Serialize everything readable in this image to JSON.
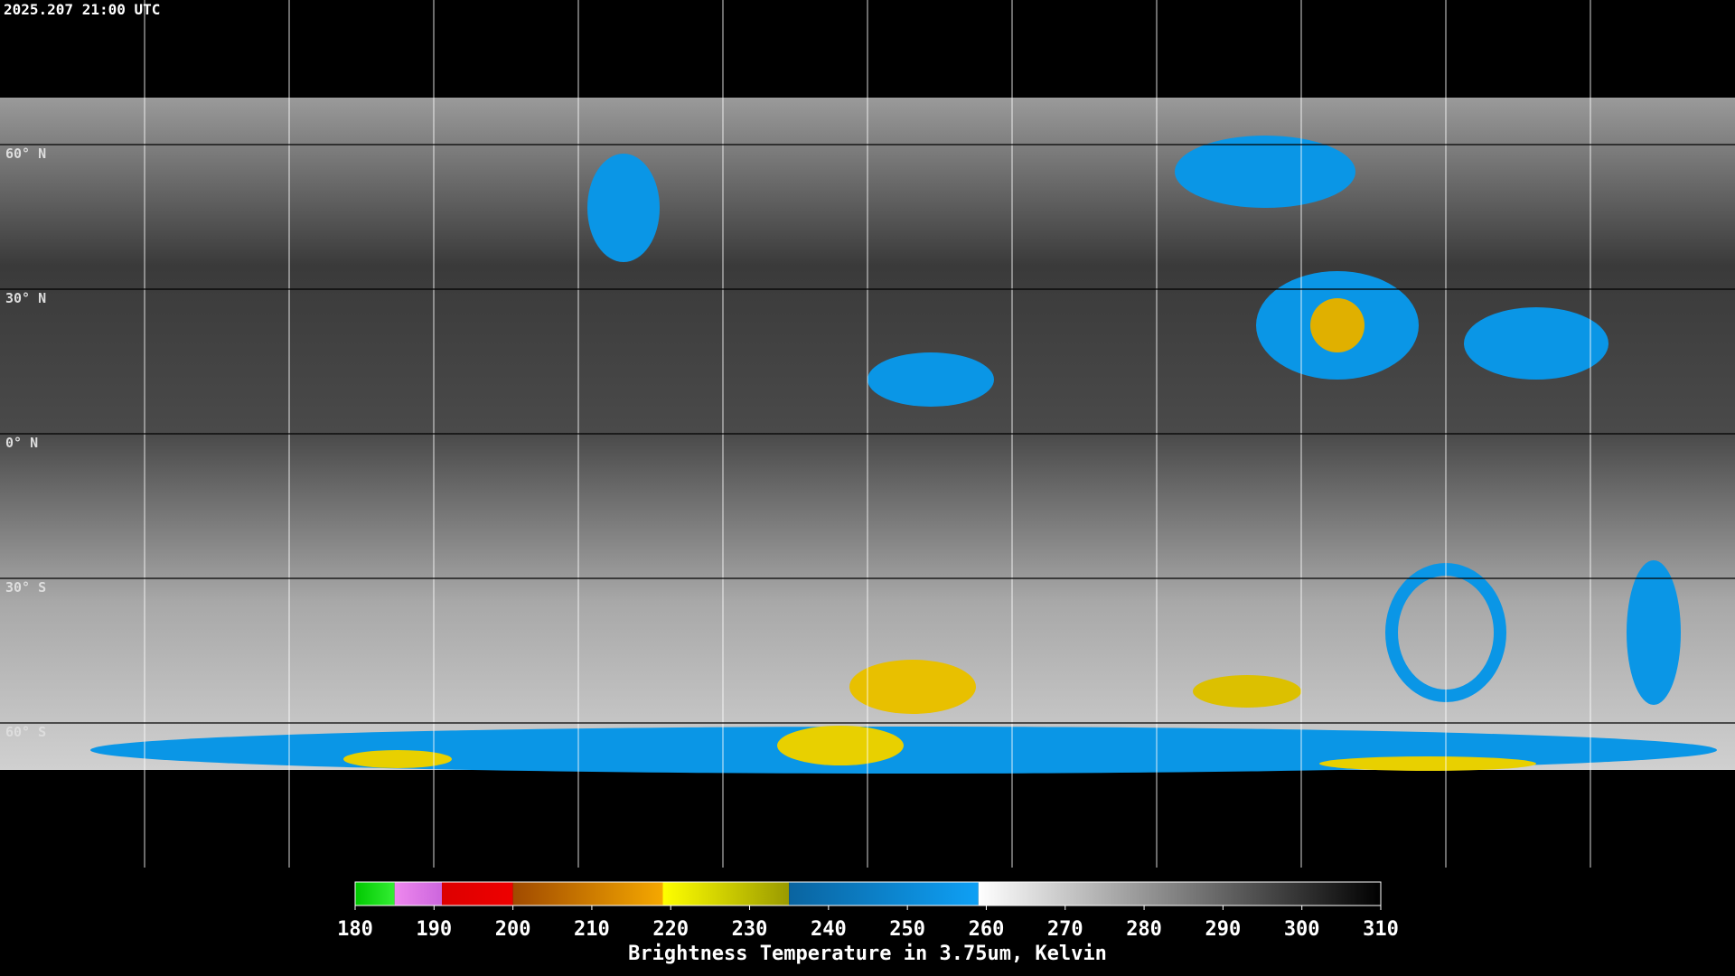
{
  "header": {
    "timestamp": "2025.207 21:00 UTC"
  },
  "map": {
    "xlim": [
      -180,
      180
    ],
    "ylim": [
      -90,
      90
    ],
    "longitudes": [
      -150,
      -120,
      -90,
      -60,
      -30,
      0,
      30,
      60,
      90,
      120,
      150
    ],
    "latitudes": [
      60,
      30,
      0,
      -30,
      -60
    ],
    "lat_labels": [
      "60° N",
      "30° N",
      "0° N",
      "30° S",
      "60° S"
    ]
  },
  "colorbar": {
    "lim": [
      180,
      310
    ],
    "ticks": [
      180,
      190,
      200,
      210,
      220,
      230,
      240,
      250,
      260,
      270,
      280,
      290,
      300,
      310
    ],
    "segments": [
      {
        "from": 180,
        "to": 185,
        "colors": [
          "#00c800",
          "#33ee33"
        ]
      },
      {
        "from": 185,
        "to": 191,
        "colors": [
          "#ee88ee",
          "#cc66dd"
        ]
      },
      {
        "from": 191,
        "to": 200,
        "colors": [
          "#dd0000",
          "#ee0000"
        ]
      },
      {
        "from": 200,
        "to": 219,
        "colors": [
          "#a04a00",
          "#f5a800"
        ]
      },
      {
        "from": 219,
        "to": 235,
        "colors": [
          "#ffff00",
          "#9a9a00"
        ]
      },
      {
        "from": 235,
        "to": 259,
        "colors": [
          "#0a64a0",
          "#0ea0f5"
        ]
      },
      {
        "from": 259,
        "to": 310,
        "colors": [
          "#ffffff",
          "#000000"
        ]
      }
    ],
    "label": "Brightness Temperature in 3.75um, Kelvin"
  }
}
